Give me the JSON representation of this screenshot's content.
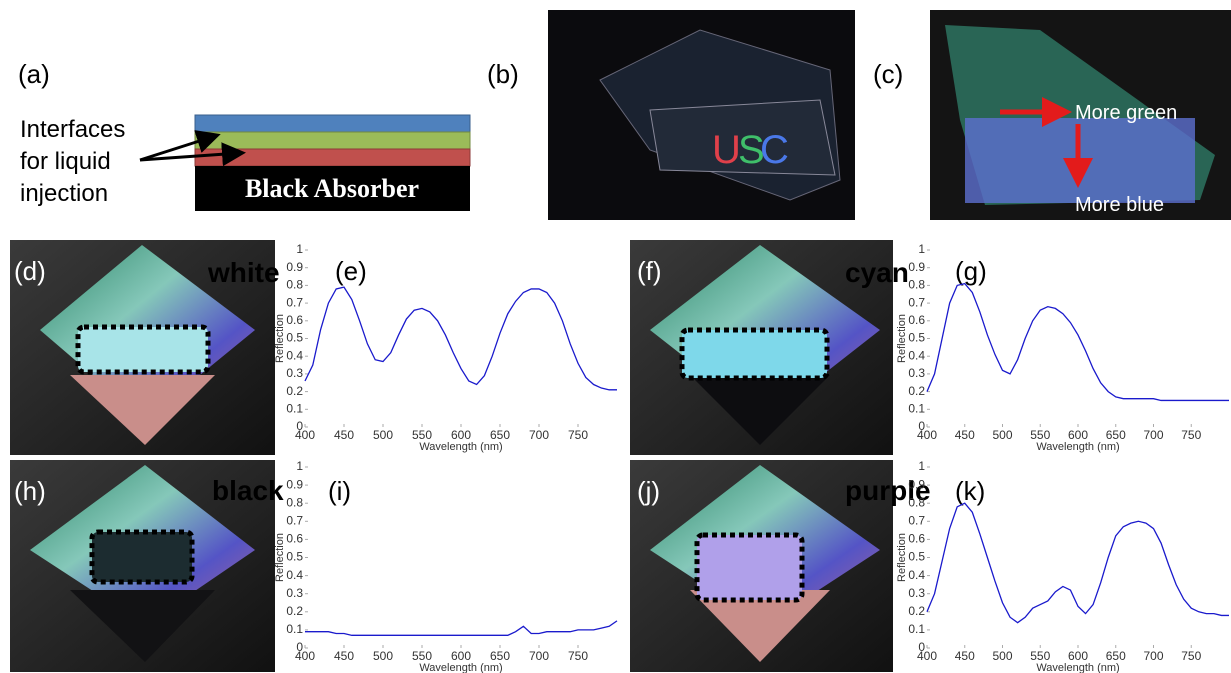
{
  "panels": {
    "a": "(a)",
    "b": "(b)",
    "c": "(c)",
    "d": "(d)",
    "e": "(e)",
    "f": "(f)",
    "g": "(g)",
    "h": "(h)",
    "i": "(i)",
    "j": "(j)",
    "k": "(k)"
  },
  "diagram": {
    "interface_text": [
      "Interfaces",
      "for liquid",
      "injection"
    ],
    "absorber": "Black Absorber"
  },
  "photo_b": {
    "letters": [
      "U",
      "S",
      "C"
    ]
  },
  "photo_c": {
    "more_green": "More green",
    "more_blue": "More blue"
  },
  "photo_labels": {
    "d": "white",
    "f": "cyan",
    "h": "black",
    "j": "purple"
  },
  "chart_data": [
    {
      "type": "line",
      "xlabel": "Wavelength (nm)",
      "ylabel": "Reflection",
      "color": "#1a1acc",
      "xlim": [
        400,
        800
      ],
      "ylim": [
        0,
        1
      ],
      "xticks": [
        400,
        450,
        500,
        550,
        600,
        650,
        700,
        750
      ],
      "yticks": [
        0,
        0.1,
        0.2,
        0.3,
        0.4,
        0.5,
        0.6,
        0.7,
        0.8,
        0.9,
        1
      ],
      "x": [
        400,
        410,
        420,
        430,
        440,
        450,
        460,
        470,
        480,
        490,
        500,
        510,
        520,
        530,
        540,
        550,
        560,
        570,
        580,
        590,
        600,
        610,
        620,
        630,
        640,
        650,
        660,
        670,
        680,
        690,
        700,
        710,
        720,
        730,
        740,
        750,
        760,
        770,
        780,
        790,
        800
      ],
      "values": [
        0.26,
        0.35,
        0.55,
        0.7,
        0.78,
        0.79,
        0.72,
        0.6,
        0.47,
        0.38,
        0.37,
        0.42,
        0.52,
        0.61,
        0.66,
        0.67,
        0.65,
        0.6,
        0.52,
        0.42,
        0.33,
        0.26,
        0.24,
        0.29,
        0.4,
        0.53,
        0.64,
        0.71,
        0.76,
        0.78,
        0.78,
        0.76,
        0.7,
        0.6,
        0.47,
        0.36,
        0.28,
        0.24,
        0.22,
        0.21,
        0.21
      ]
    },
    {
      "type": "line",
      "xlabel": "Wavelength (nm)",
      "ylabel": "Reflection",
      "color": "#1a1acc",
      "xlim": [
        400,
        800
      ],
      "ylim": [
        0,
        1
      ],
      "xticks": [
        400,
        450,
        500,
        550,
        600,
        650,
        700,
        750
      ],
      "yticks": [
        0,
        0.1,
        0.2,
        0.3,
        0.4,
        0.5,
        0.6,
        0.7,
        0.8,
        0.9,
        1
      ],
      "x": [
        400,
        410,
        420,
        430,
        440,
        450,
        460,
        470,
        480,
        490,
        500,
        510,
        520,
        530,
        540,
        550,
        560,
        570,
        580,
        590,
        600,
        610,
        620,
        630,
        640,
        650,
        660,
        670,
        680,
        690,
        700,
        710,
        720,
        730,
        740,
        750,
        760,
        770,
        780,
        790,
        800
      ],
      "values": [
        0.2,
        0.3,
        0.5,
        0.7,
        0.8,
        0.81,
        0.76,
        0.65,
        0.52,
        0.41,
        0.32,
        0.3,
        0.38,
        0.5,
        0.6,
        0.66,
        0.68,
        0.67,
        0.64,
        0.59,
        0.52,
        0.43,
        0.33,
        0.25,
        0.2,
        0.17,
        0.16,
        0.16,
        0.16,
        0.16,
        0.16,
        0.15,
        0.15,
        0.15,
        0.15,
        0.15,
        0.15,
        0.15,
        0.15,
        0.15,
        0.15
      ]
    },
    {
      "type": "line",
      "xlabel": "Wavelength (nm)",
      "ylabel": "Reflection",
      "color": "#1a1acc",
      "xlim": [
        400,
        800
      ],
      "ylim": [
        0,
        1
      ],
      "xticks": [
        400,
        450,
        500,
        550,
        600,
        650,
        700,
        750
      ],
      "yticks": [
        0,
        0.1,
        0.2,
        0.3,
        0.4,
        0.5,
        0.6,
        0.7,
        0.8,
        0.9,
        1
      ],
      "x": [
        400,
        410,
        420,
        430,
        440,
        450,
        460,
        470,
        480,
        490,
        500,
        510,
        520,
        530,
        540,
        550,
        560,
        570,
        580,
        590,
        600,
        610,
        620,
        630,
        640,
        650,
        660,
        670,
        680,
        690,
        700,
        710,
        720,
        730,
        740,
        750,
        760,
        770,
        780,
        790,
        800
      ],
      "values": [
        0.09,
        0.09,
        0.09,
        0.09,
        0.08,
        0.08,
        0.07,
        0.07,
        0.07,
        0.07,
        0.07,
        0.07,
        0.07,
        0.07,
        0.07,
        0.07,
        0.07,
        0.07,
        0.07,
        0.07,
        0.07,
        0.07,
        0.07,
        0.07,
        0.07,
        0.07,
        0.07,
        0.09,
        0.12,
        0.08,
        0.08,
        0.09,
        0.09,
        0.09,
        0.09,
        0.1,
        0.1,
        0.1,
        0.11,
        0.12,
        0.15
      ]
    },
    {
      "type": "line",
      "xlabel": "Wavelength (nm)",
      "ylabel": "Reflection",
      "color": "#1a1acc",
      "xlim": [
        400,
        800
      ],
      "ylim": [
        0,
        1
      ],
      "xticks": [
        400,
        450,
        500,
        550,
        600,
        650,
        700,
        750
      ],
      "yticks": [
        0,
        0.1,
        0.2,
        0.3,
        0.4,
        0.5,
        0.6,
        0.7,
        0.8,
        0.9,
        1
      ],
      "x": [
        400,
        410,
        420,
        430,
        440,
        450,
        460,
        470,
        480,
        490,
        500,
        510,
        520,
        530,
        540,
        550,
        560,
        570,
        580,
        590,
        600,
        610,
        620,
        630,
        640,
        650,
        660,
        670,
        680,
        690,
        700,
        710,
        720,
        730,
        740,
        750,
        760,
        770,
        780,
        790,
        800
      ],
      "values": [
        0.2,
        0.3,
        0.48,
        0.66,
        0.78,
        0.8,
        0.75,
        0.63,
        0.5,
        0.37,
        0.25,
        0.17,
        0.14,
        0.17,
        0.22,
        0.24,
        0.26,
        0.31,
        0.34,
        0.32,
        0.23,
        0.19,
        0.24,
        0.36,
        0.5,
        0.62,
        0.67,
        0.69,
        0.7,
        0.69,
        0.66,
        0.58,
        0.46,
        0.35,
        0.27,
        0.22,
        0.2,
        0.19,
        0.19,
        0.18,
        0.18
      ]
    }
  ]
}
